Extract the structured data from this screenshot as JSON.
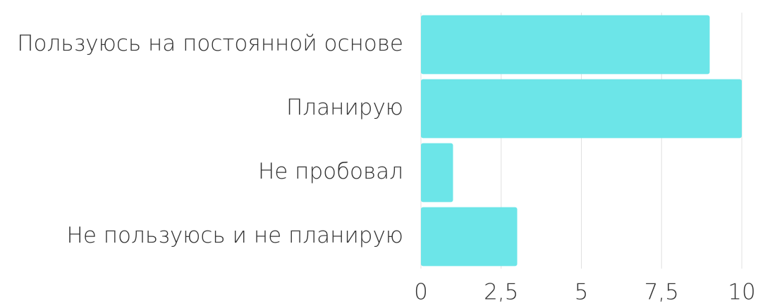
{
  "chart_data": {
    "type": "hbar",
    "categories": [
      "Пользуюсь на постоянной основе",
      "Планирую",
      "Не пробовал",
      "Не пользуюсь и не планирую"
    ],
    "values": [
      9,
      10,
      1,
      3
    ],
    "color": "#6ce5e8",
    "xlim": [
      0,
      10
    ],
    "xticks": [
      0,
      {
        "value": 2.5,
        "label": "2,5"
      },
      5,
      {
        "value": 7.5,
        "label": "7,5"
      },
      10
    ],
    "grid": true
  }
}
